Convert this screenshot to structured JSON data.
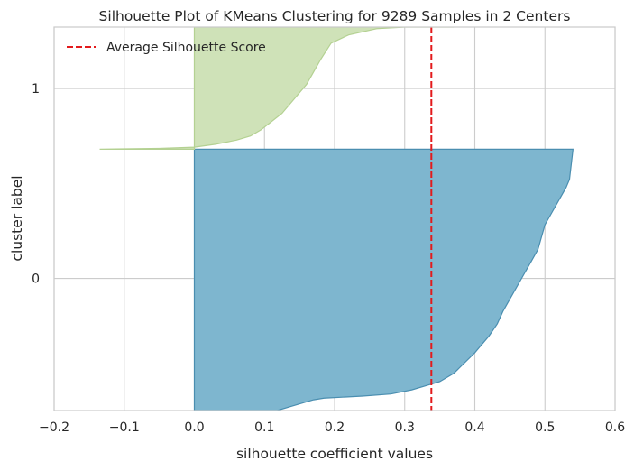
{
  "chart_data": {
    "type": "area",
    "title": "Silhouette Plot of KMeans Clustering for 9289 Samples in 2 Centers",
    "xlabel": "silhouette coefficient values",
    "ylabel": "cluster label",
    "xlim": [
      -0.2,
      0.6
    ],
    "ylim": [
      0,
      9289
    ],
    "x_ticks": [
      "−0.2",
      "−0.1",
      "0.0",
      "0.1",
      "0.2",
      "0.3",
      "0.4",
      "0.5",
      "0.6"
    ],
    "x_tick_values": [
      -0.2,
      -0.1,
      0.0,
      0.1,
      0.2,
      0.3,
      0.4,
      0.5,
      0.6
    ],
    "y_ticks": [
      "0",
      "1"
    ],
    "y_tick_values": [
      3200,
      7800
    ],
    "grid": true,
    "legend_position": "top-left",
    "legend": [
      {
        "label": "Average Silhouette Score",
        "color": "#e31a1c",
        "style": "dashed"
      }
    ],
    "average_silhouette_score": 0.338,
    "series": [
      {
        "name": "0",
        "color": "#7eb6cf",
        "edge_color": "#4a8eb0",
        "points": [
          [
            0.118,
            0
          ],
          [
            0.14,
            110
          ],
          [
            0.17,
            260
          ],
          [
            0.185,
            300
          ],
          [
            0.24,
            350
          ],
          [
            0.28,
            400
          ],
          [
            0.31,
            500
          ],
          [
            0.33,
            600
          ],
          [
            0.35,
            700
          ],
          [
            0.37,
            900
          ],
          [
            0.385,
            1150
          ],
          [
            0.4,
            1400
          ],
          [
            0.41,
            1600
          ],
          [
            0.42,
            1800
          ],
          [
            0.432,
            2100
          ],
          [
            0.44,
            2400
          ],
          [
            0.45,
            2700
          ],
          [
            0.46,
            3000
          ],
          [
            0.47,
            3300
          ],
          [
            0.48,
            3600
          ],
          [
            0.49,
            3900
          ],
          [
            0.495,
            4200
          ],
          [
            0.5,
            4500
          ],
          [
            0.51,
            4800
          ],
          [
            0.52,
            5100
          ],
          [
            0.53,
            5400
          ],
          [
            0.535,
            5600
          ],
          [
            0.54,
            6330
          ]
        ]
      },
      {
        "name": "1",
        "color": "#cfe2b8",
        "edge_color": "#b4d192",
        "points": [
          [
            -0.135,
            6330
          ],
          [
            -0.05,
            6350
          ],
          [
            0.0,
            6380
          ],
          [
            0.03,
            6450
          ],
          [
            0.06,
            6550
          ],
          [
            0.08,
            6650
          ],
          [
            0.095,
            6800
          ],
          [
            0.11,
            7000
          ],
          [
            0.125,
            7200
          ],
          [
            0.14,
            7500
          ],
          [
            0.16,
            7900
          ],
          [
            0.17,
            8200
          ],
          [
            0.18,
            8500
          ],
          [
            0.195,
            8900
          ],
          [
            0.22,
            9100
          ],
          [
            0.26,
            9250
          ],
          [
            0.3,
            9289
          ],
          [
            0.37,
            9289
          ]
        ]
      }
    ]
  }
}
